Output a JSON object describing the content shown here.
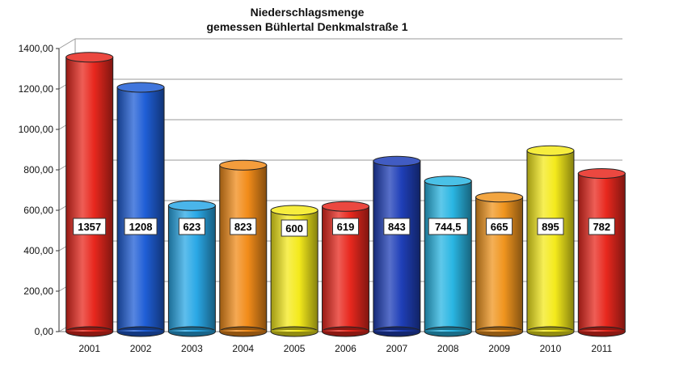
{
  "chart_data": {
    "type": "bar",
    "title_line1": "Niederschlagsmenge",
    "title_line2": "gemessen Bühlertal Denkmalstraße 1",
    "xlabel": "",
    "ylabel": "",
    "ylim": [
      0,
      1400
    ],
    "y_ticks": [
      "0,00",
      "200,00",
      "400,00",
      "600,00",
      "800,00",
      "1000,00",
      "1200,00",
      "1400,00"
    ],
    "categories": [
      "2001",
      "2002",
      "2003",
      "2004",
      "2005",
      "2006",
      "2007",
      "2008",
      "2009",
      "2010",
      "2011"
    ],
    "values": [
      1357,
      1208,
      623,
      823,
      600,
      619,
      843,
      744.5,
      665,
      895,
      782
    ],
    "value_labels": [
      "1357",
      "1208",
      "623",
      "823",
      "600",
      "619",
      "843",
      "744,5",
      "665",
      "895",
      "782"
    ],
    "bar_colors": [
      "#e8281e",
      "#1f5ed6",
      "#2aa8e6",
      "#f28c1a",
      "#f4ea1c",
      "#e8281e",
      "#1f3fb8",
      "#2ab6e3",
      "#f0951f",
      "#f4ea1c",
      "#e8281e"
    ],
    "grid": true,
    "legend": "none"
  }
}
